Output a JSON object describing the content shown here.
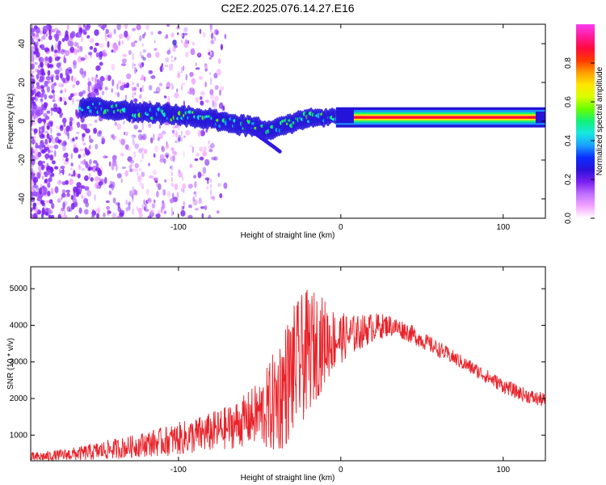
{
  "title": "C2E2.2025.076.14.27.E16",
  "chart_data": [
    {
      "type": "heatmap",
      "xlabel": "Height of straight line (km)",
      "ylabel": "Frequency (Hz)",
      "xlim": [
        -191,
        126
      ],
      "ylim": [
        -50,
        50
      ],
      "xticks": [
        -100,
        0,
        100
      ],
      "yticks": [
        -40,
        -20,
        0,
        20,
        40
      ],
      "grid": false,
      "colorbar": {
        "label": "Normalized spectral amplitude",
        "range": [
          0,
          1
        ],
        "ticks": [
          0.0,
          0.2,
          0.4,
          0.6,
          0.8
        ],
        "colors": [
          "#ffffff",
          "#f4a6ff",
          "#c070ff",
          "#7a1ff0",
          "#2b12d9",
          "#0a2cff",
          "#1aa0ff",
          "#16e8e0",
          "#12f07a",
          "#66ff00",
          "#d8ff00",
          "#ffe600",
          "#ffa000",
          "#ff3a00",
          "#ff0a3c",
          "#ff1a9a",
          "#ff3cf0"
        ]
      },
      "ridge": {
        "x": [
          -155,
          -140,
          -120,
          -100,
          -90,
          -80,
          -70,
          -60,
          -50,
          -45,
          -40,
          -35,
          -30,
          -25,
          -20,
          -10,
          0,
          10,
          50,
          100,
          126
        ],
        "freq": [
          7,
          6,
          4.5,
          3,
          2,
          1,
          -1,
          -2,
          -3.5,
          -5,
          -4,
          -2,
          -1,
          0.5,
          1.5,
          2,
          2.5,
          2,
          2,
          2,
          2
        ]
      },
      "tail": {
        "x": [
          -60,
          -55,
          -50,
          -45,
          -40,
          -37
        ],
        "freq": [
          -2,
          -5,
          -8,
          -11,
          -14,
          -16
        ]
      }
    },
    {
      "type": "line",
      "xlabel": "Height of straight line (km)",
      "ylabel": "SNR (10 * v/v)",
      "xlim": [
        -191,
        126
      ],
      "ylim": [
        300,
        5600
      ],
      "xticks": [
        -100,
        0,
        100
      ],
      "yticks": [
        1000,
        2000,
        3000,
        4000,
        5000
      ],
      "grid": false,
      "series": [
        {
          "color": "#e8232a",
          "x": [
            -191,
            -180,
            -170,
            -160,
            -150,
            -140,
            -130,
            -120,
            -110,
            -100,
            -90,
            -80,
            -70,
            -60,
            -50,
            -45,
            -40,
            -35,
            -30,
            -25,
            -20,
            -15,
            -10,
            -5,
            0,
            10,
            20,
            30,
            40,
            50,
            60,
            70,
            80,
            90,
            100,
            110,
            120,
            126
          ],
          "values": [
            380,
            420,
            460,
            500,
            560,
            620,
            680,
            760,
            820,
            900,
            980,
            1080,
            1200,
            1380,
            1600,
            1700,
            1950,
            2300,
            2700,
            3000,
            3300,
            3450,
            3550,
            3600,
            3650,
            3780,
            3950,
            4000,
            3850,
            3600,
            3350,
            3100,
            2850,
            2600,
            2350,
            2150,
            2000,
            1950
          ],
          "spread": [
            150,
            150,
            170,
            200,
            250,
            280,
            300,
            350,
            400,
            450,
            500,
            550,
            600,
            700,
            900,
            1200,
            1500,
            1700,
            1800,
            1800,
            1700,
            1500,
            1200,
            900,
            700,
            500,
            400,
            300,
            260,
            240,
            220,
            200,
            200,
            200,
            200,
            200,
            200,
            200
          ]
        }
      ]
    }
  ]
}
